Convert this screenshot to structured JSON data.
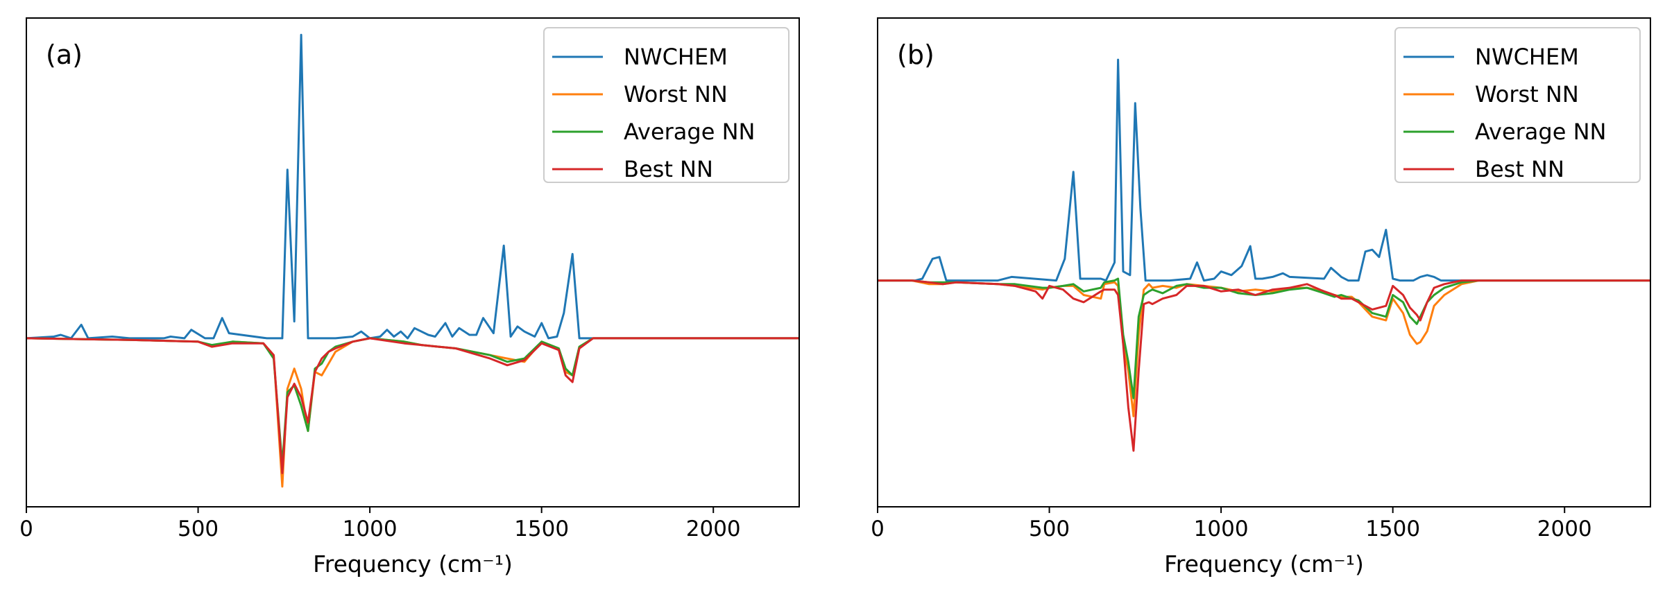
{
  "colors": {
    "NWCHEM": "#1f77b4",
    "Worst NN": "#ff7f0e",
    "Average NN": "#2ca02c",
    "Best NN": "#d62728"
  },
  "chart_data": [
    {
      "type": "line",
      "panel_label": "(a)",
      "xlabel": "Frequency (cm⁻¹)",
      "ylabel": "",
      "xlim": [
        0,
        2250
      ],
      "ylim": [
        -1.0,
        1.9
      ],
      "xticks": [
        0,
        500,
        1000,
        1500,
        2000
      ],
      "xtick_labels": [
        "0",
        "500",
        "1000",
        "1500",
        "2000"
      ],
      "legend": [
        "NWCHEM",
        "Worst NN",
        "Average NN",
        "Best NN"
      ],
      "legend_position": "top-right",
      "series": [
        {
          "name": "NWCHEM",
          "x": [
            0,
            80,
            100,
            130,
            160,
            180,
            250,
            300,
            400,
            420,
            460,
            480,
            520,
            545,
            570,
            590,
            700,
            745,
            760,
            780,
            800,
            820,
            900,
            950,
            975,
            1000,
            1030,
            1050,
            1070,
            1090,
            1110,
            1130,
            1170,
            1190,
            1220,
            1240,
            1260,
            1290,
            1310,
            1330,
            1360,
            1390,
            1410,
            1430,
            1450,
            1480,
            1500,
            1520,
            1545,
            1565,
            1590,
            1610,
            2250
          ],
          "y": [
            0,
            0.01,
            0.02,
            0,
            0.08,
            0,
            0.01,
            0,
            0,
            0.01,
            0,
            0.05,
            0,
            0,
            0.12,
            0.03,
            0,
            0,
            1.0,
            0.1,
            1.8,
            0,
            0,
            0.01,
            0.04,
            0,
            0.01,
            0.05,
            0.01,
            0.04,
            0,
            0.06,
            0.02,
            0.01,
            0.09,
            0.01,
            0.06,
            0.02,
            0.02,
            0.12,
            0.03,
            0.55,
            0.01,
            0.07,
            0.04,
            0.01,
            0.09,
            0,
            0.01,
            0.15,
            0.5,
            0,
            0
          ]
        },
        {
          "name": "Worst NN",
          "x": [
            0,
            300,
            500,
            540,
            600,
            690,
            720,
            745,
            760,
            780,
            800,
            820,
            840,
            860,
            880,
            900,
            950,
            1000,
            1100,
            1150,
            1200,
            1250,
            1300,
            1350,
            1400,
            1450,
            1500,
            1550,
            1570,
            1590,
            1610,
            1650,
            2250
          ],
          "y": [
            0,
            -0.01,
            -0.02,
            -0.05,
            -0.02,
            -0.03,
            -0.1,
            -0.88,
            -0.3,
            -0.18,
            -0.3,
            -0.55,
            -0.2,
            -0.22,
            -0.15,
            -0.08,
            -0.02,
            0,
            -0.02,
            -0.04,
            -0.05,
            -0.06,
            -0.08,
            -0.1,
            -0.12,
            -0.14,
            -0.02,
            -0.06,
            -0.2,
            -0.22,
            -0.05,
            0,
            0
          ]
        },
        {
          "name": "Average NN",
          "x": [
            0,
            300,
            500,
            540,
            600,
            690,
            720,
            745,
            760,
            780,
            800,
            820,
            840,
            860,
            880,
            900,
            950,
            1000,
            1100,
            1150,
            1200,
            1250,
            1300,
            1350,
            1400,
            1450,
            1500,
            1550,
            1570,
            1590,
            1610,
            1650,
            2250
          ],
          "y": [
            0,
            -0.01,
            -0.02,
            -0.04,
            -0.02,
            -0.03,
            -0.12,
            -0.75,
            -0.32,
            -0.28,
            -0.4,
            -0.55,
            -0.18,
            -0.15,
            -0.08,
            -0.05,
            -0.02,
            0,
            -0.02,
            -0.04,
            -0.05,
            -0.06,
            -0.08,
            -0.1,
            -0.14,
            -0.12,
            -0.02,
            -0.06,
            -0.18,
            -0.22,
            -0.05,
            0,
            0
          ]
        },
        {
          "name": "Best NN",
          "x": [
            0,
            300,
            500,
            540,
            600,
            690,
            720,
            745,
            760,
            780,
            800,
            820,
            840,
            860,
            880,
            900,
            950,
            1000,
            1100,
            1150,
            1200,
            1250,
            1300,
            1350,
            1400,
            1450,
            1500,
            1550,
            1570,
            1590,
            1610,
            1650,
            2250
          ],
          "y": [
            0,
            -0.01,
            -0.02,
            -0.05,
            -0.03,
            -0.03,
            -0.1,
            -0.8,
            -0.35,
            -0.27,
            -0.35,
            -0.5,
            -0.2,
            -0.12,
            -0.08,
            -0.06,
            -0.02,
            0,
            -0.03,
            -0.04,
            -0.05,
            -0.06,
            -0.09,
            -0.12,
            -0.16,
            -0.13,
            -0.03,
            -0.07,
            -0.22,
            -0.26,
            -0.06,
            0,
            0
          ]
        }
      ]
    },
    {
      "type": "line",
      "panel_label": "(b)",
      "xlabel": "Frequency (cm⁻¹)",
      "ylabel": "",
      "xlim": [
        0,
        2250
      ],
      "ylim": [
        -1.25,
        1.45
      ],
      "xticks": [
        0,
        500,
        1000,
        1500,
        2000
      ],
      "xtick_labels": [
        "0",
        "500",
        "1000",
        "1500",
        "2000"
      ],
      "legend": [
        "NWCHEM",
        "Worst NN",
        "Average NN",
        "Best NN"
      ],
      "legend_position": "top-right",
      "series": [
        {
          "name": "NWCHEM",
          "x": [
            0,
            110,
            130,
            160,
            180,
            200,
            350,
            390,
            520,
            545,
            570,
            590,
            650,
            665,
            690,
            700,
            715,
            735,
            750,
            765,
            780,
            795,
            850,
            910,
            930,
            950,
            980,
            1000,
            1030,
            1060,
            1085,
            1100,
            1120,
            1150,
            1180,
            1200,
            1300,
            1320,
            1350,
            1370,
            1400,
            1420,
            1440,
            1460,
            1480,
            1500,
            1520,
            1560,
            1580,
            1600,
            1620,
            1640,
            2250
          ],
          "y": [
            0,
            0,
            0.01,
            0.12,
            0.13,
            0,
            0,
            0.02,
            0,
            0.12,
            0.6,
            0.01,
            0.01,
            0,
            0.1,
            1.22,
            0.05,
            0.03,
            0.98,
            0.4,
            0,
            0,
            0,
            0.01,
            0.1,
            0,
            0.01,
            0.05,
            0.03,
            0.08,
            0.19,
            0.01,
            0.01,
            0.02,
            0.04,
            0.02,
            0.01,
            0.07,
            0.02,
            0,
            0,
            0.16,
            0.17,
            0.13,
            0.28,
            0.01,
            0,
            0,
            0.02,
            0.03,
            0.02,
            0,
            0
          ]
        },
        {
          "name": "Worst NN",
          "x": [
            0,
            100,
            150,
            190,
            230,
            350,
            400,
            480,
            500,
            540,
            570,
            600,
            650,
            660,
            690,
            700,
            715,
            730,
            745,
            760,
            775,
            790,
            800,
            830,
            870,
            900,
            950,
            1000,
            1050,
            1100,
            1150,
            1200,
            1250,
            1300,
            1330,
            1350,
            1380,
            1400,
            1440,
            1480,
            1500,
            1530,
            1550,
            1570,
            1580,
            1600,
            1620,
            1650,
            1700,
            1750,
            2250
          ],
          "y": [
            0,
            0,
            -0.02,
            -0.02,
            -0.01,
            -0.02,
            -0.03,
            -0.05,
            -0.04,
            -0.03,
            -0.03,
            -0.08,
            -0.1,
            -0.02,
            -0.01,
            -0.03,
            -0.35,
            -0.5,
            -0.75,
            -0.3,
            -0.05,
            -0.02,
            -0.04,
            -0.03,
            -0.04,
            -0.02,
            -0.03,
            -0.04,
            -0.06,
            -0.05,
            -0.06,
            -0.04,
            -0.04,
            -0.06,
            -0.08,
            -0.09,
            -0.09,
            -0.12,
            -0.2,
            -0.22,
            -0.1,
            -0.18,
            -0.3,
            -0.35,
            -0.34,
            -0.28,
            -0.14,
            -0.08,
            -0.02,
            0,
            0
          ]
        },
        {
          "name": "Average NN",
          "x": [
            0,
            100,
            150,
            190,
            230,
            350,
            400,
            480,
            500,
            540,
            570,
            600,
            650,
            660,
            690,
            700,
            715,
            730,
            745,
            760,
            775,
            790,
            800,
            830,
            870,
            900,
            950,
            1000,
            1050,
            1100,
            1150,
            1200,
            1250,
            1300,
            1330,
            1350,
            1380,
            1400,
            1440,
            1480,
            1500,
            1530,
            1550,
            1570,
            1580,
            1600,
            1620,
            1650,
            1700,
            1750,
            2250
          ],
          "y": [
            0,
            0,
            -0.01,
            -0.01,
            -0.01,
            -0.02,
            -0.02,
            -0.04,
            -0.04,
            -0.03,
            -0.02,
            -0.06,
            -0.04,
            -0.01,
            0,
            0.01,
            -0.3,
            -0.45,
            -0.65,
            -0.2,
            -0.08,
            -0.06,
            -0.05,
            -0.07,
            -0.03,
            -0.02,
            -0.04,
            -0.04,
            -0.07,
            -0.08,
            -0.07,
            -0.05,
            -0.04,
            -0.07,
            -0.09,
            -0.08,
            -0.1,
            -0.11,
            -0.18,
            -0.2,
            -0.08,
            -0.12,
            -0.2,
            -0.24,
            -0.2,
            -0.12,
            -0.08,
            -0.04,
            -0.01,
            0,
            0
          ]
        },
        {
          "name": "Best NN",
          "x": [
            0,
            100,
            150,
            190,
            230,
            350,
            400,
            460,
            480,
            500,
            540,
            570,
            600,
            650,
            660,
            690,
            700,
            715,
            730,
            745,
            760,
            775,
            790,
            800,
            830,
            870,
            900,
            950,
            1000,
            1050,
            1100,
            1150,
            1200,
            1250,
            1300,
            1330,
            1350,
            1380,
            1400,
            1440,
            1480,
            1500,
            1530,
            1550,
            1570,
            1580,
            1600,
            1620,
            1650,
            1700,
            1750,
            2250
          ],
          "y": [
            0,
            0,
            -0.01,
            -0.02,
            -0.01,
            -0.02,
            -0.03,
            -0.06,
            -0.1,
            -0.03,
            -0.05,
            -0.1,
            -0.12,
            -0.06,
            -0.05,
            -0.05,
            -0.08,
            -0.35,
            -0.7,
            -0.94,
            -0.5,
            -0.13,
            -0.12,
            -0.13,
            -0.1,
            -0.08,
            -0.03,
            -0.03,
            -0.06,
            -0.05,
            -0.08,
            -0.05,
            -0.04,
            -0.02,
            -0.06,
            -0.08,
            -0.1,
            -0.1,
            -0.12,
            -0.16,
            -0.14,
            -0.03,
            -0.08,
            -0.15,
            -0.19,
            -0.22,
            -0.12,
            -0.04,
            -0.02,
            0,
            0,
            0
          ]
        }
      ]
    }
  ]
}
